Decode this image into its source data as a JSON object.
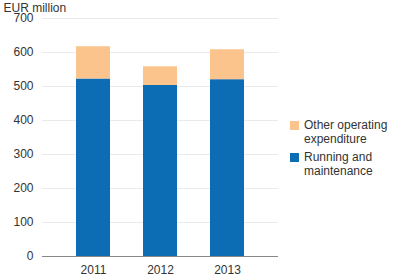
{
  "chart_data": {
    "type": "bar",
    "stacked": true,
    "y_label": "EUR million",
    "categories": [
      "2011",
      "2012",
      "2013"
    ],
    "series": [
      {
        "name": "Running and maintenance",
        "color": "#0c6db4",
        "values": [
          522,
          503,
          520
        ]
      },
      {
        "name": "Other operating expenditure",
        "color": "#fbc48c",
        "values": [
          95,
          55,
          88
        ]
      }
    ],
    "ylim": [
      0,
      700
    ],
    "yticks": [
      0,
      100,
      200,
      300,
      400,
      500,
      600,
      700
    ],
    "grid": true,
    "legend": "right"
  }
}
